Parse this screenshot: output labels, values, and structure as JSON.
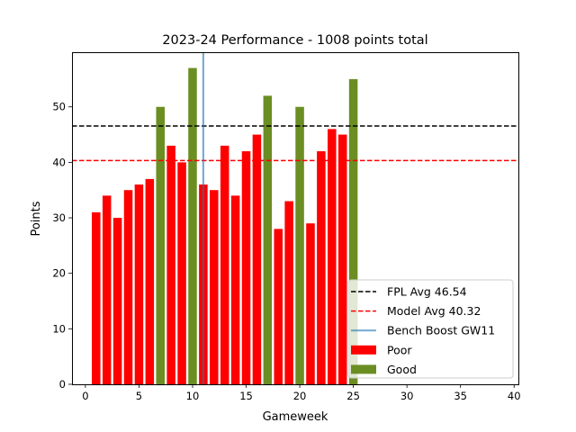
{
  "chart_data": {
    "type": "bar",
    "title": "2023-24 Performance - 1008 points total",
    "xlabel": "Gameweek",
    "ylabel": "Points",
    "xlim": [
      -1.25,
      40.4
    ],
    "ylim": [
      0,
      59.85
    ],
    "xticks": [
      0,
      5,
      10,
      15,
      20,
      25,
      30,
      35,
      40
    ],
    "yticks": [
      0,
      10,
      20,
      30,
      40,
      50
    ],
    "grid": false,
    "legend_position": "lower-right",
    "series": [
      {
        "name": "Poor",
        "color": "#ff0000",
        "x": [
          1,
          2,
          3,
          4,
          5,
          6,
          8,
          9,
          11,
          12,
          13,
          14,
          15,
          16,
          18,
          19,
          21,
          22,
          23,
          24
        ],
        "values": [
          31,
          34,
          30,
          35,
          36,
          37,
          43,
          40,
          36,
          35,
          43,
          34,
          42,
          45,
          28,
          33,
          29,
          42,
          46,
          45
        ]
      },
      {
        "name": "Good",
        "color": "#6b8e23",
        "x": [
          7,
          10,
          17,
          20,
          25
        ],
        "values": [
          50,
          57,
          52,
          50,
          55
        ]
      }
    ],
    "reference_lines": [
      {
        "name": "FPL Avg 46.54",
        "orientation": "horizontal",
        "value": 46.54,
        "color": "#000000",
        "style": "dashed"
      },
      {
        "name": "Model Avg 40.32",
        "orientation": "horizontal",
        "value": 40.32,
        "color": "#ff0000",
        "style": "dashed"
      },
      {
        "name": "Bench Boost GW11",
        "orientation": "vertical",
        "value": 11,
        "color": "#1f77b4",
        "style": "solid"
      }
    ],
    "legend": [
      "FPL Avg 46.54",
      "Model Avg 40.32",
      "Bench Boost GW11",
      "Poor",
      "Good"
    ]
  }
}
